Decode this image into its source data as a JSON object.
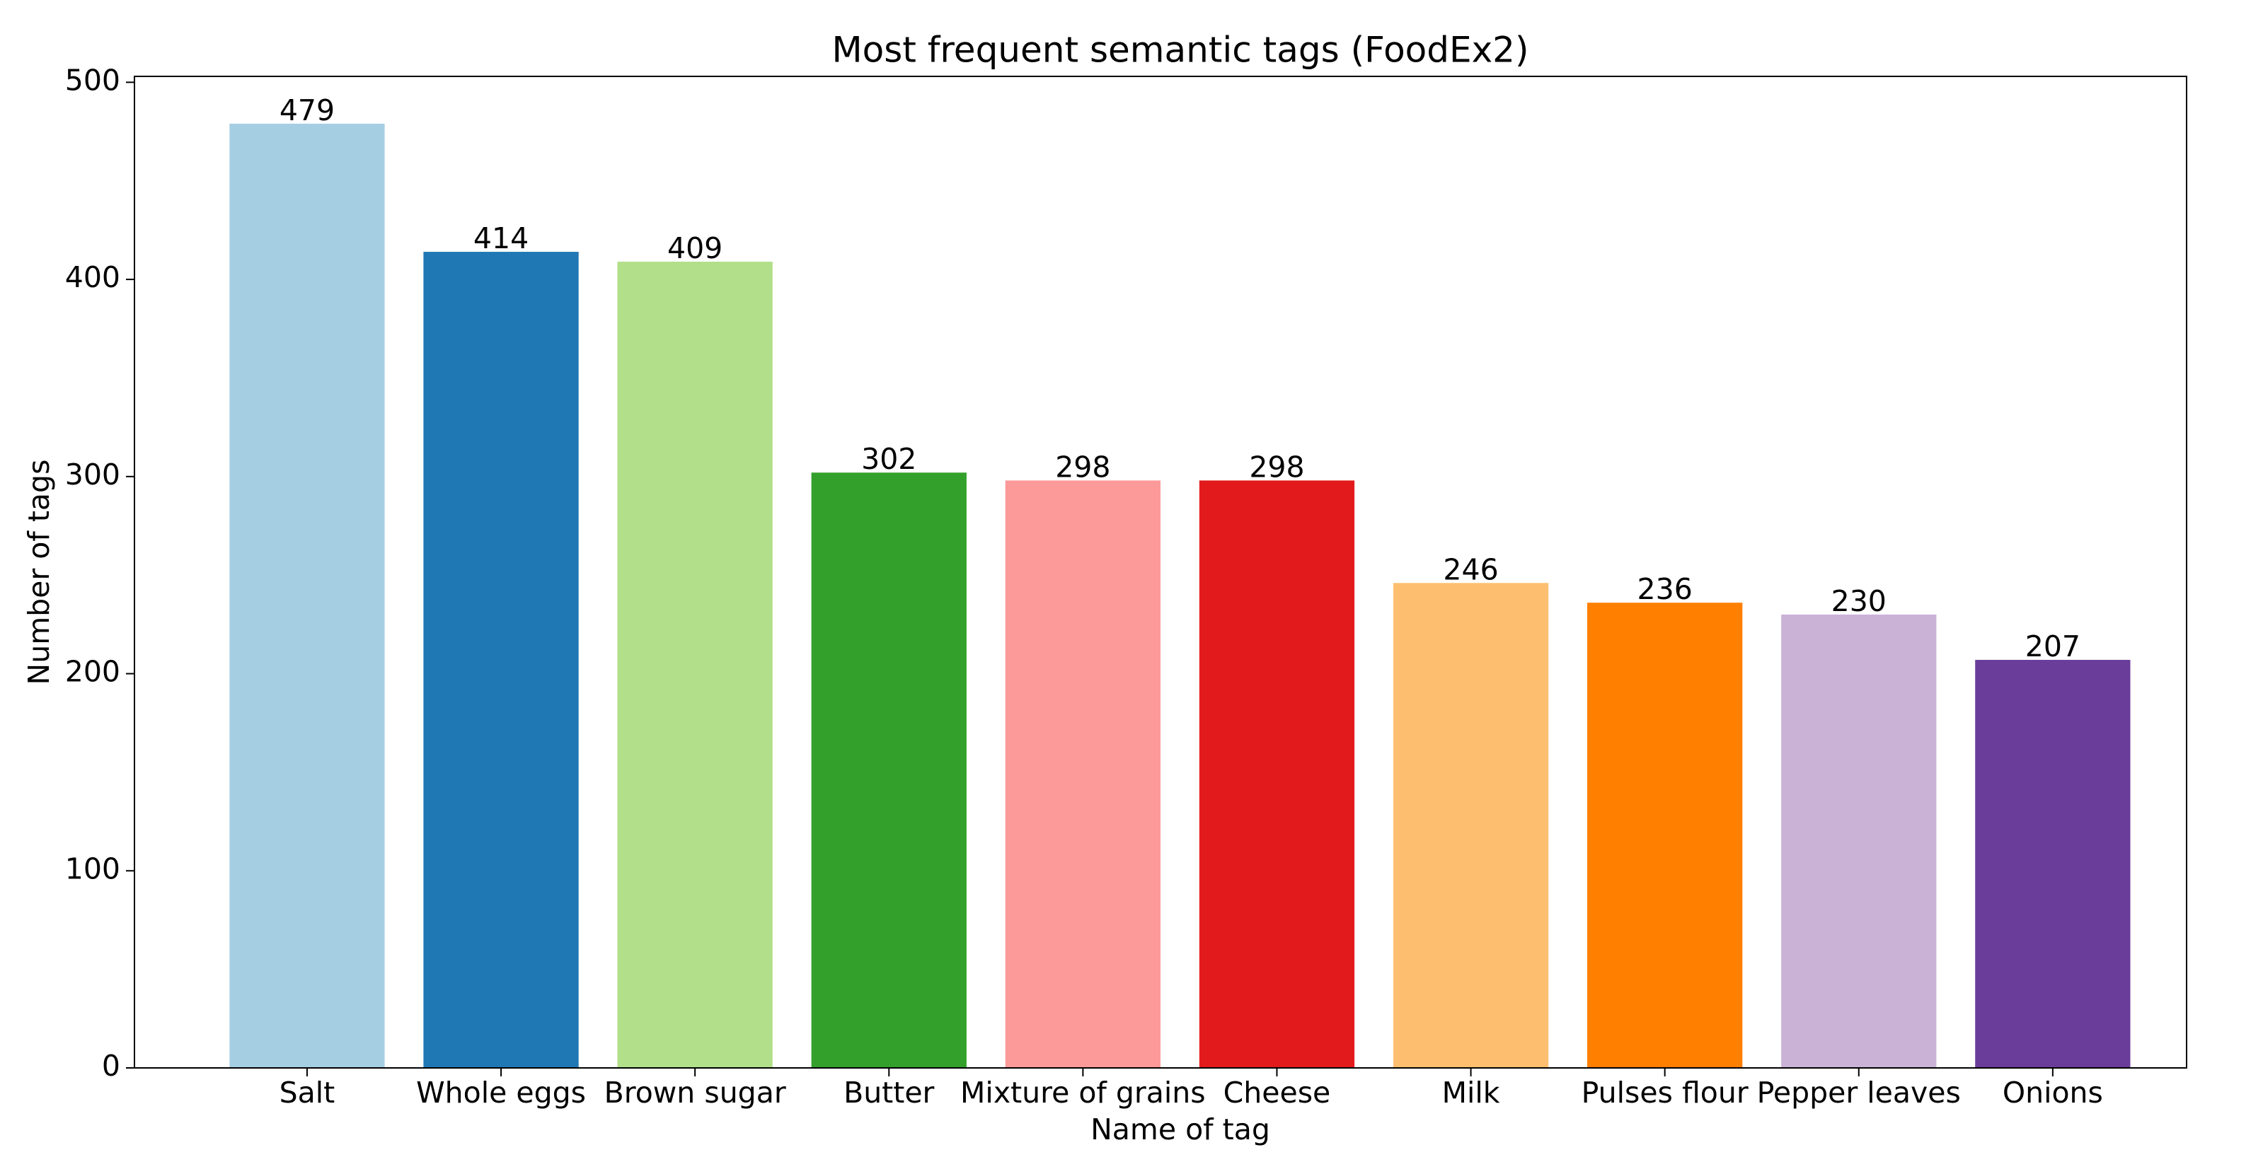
{
  "chart_data": {
    "type": "bar",
    "title": "Most frequent semantic tags (FoodEx2)",
    "x_label": "Name of tag",
    "y_label": "Number of tags",
    "categories": [
      "Salt",
      "Whole eggs",
      "Brown sugar",
      "Butter",
      "Mixture of grains",
      "Cheese",
      "Milk",
      "Pulses flour",
      "Pepper leaves",
      "Onions"
    ],
    "values": [
      479,
      414,
      409,
      302,
      298,
      298,
      246,
      236,
      230,
      207
    ],
    "colors": [
      "#a6cee3",
      "#1f78b4",
      "#b2df8a",
      "#33a02c",
      "#fb9a99",
      "#e31a1c",
      "#fdbf6f",
      "#ff7f00",
      "#cab2d6",
      "#6a3d9a"
    ],
    "ylim": [
      0,
      503
    ],
    "yticks": [
      0,
      100,
      200,
      300,
      400,
      500
    ],
    "grid": false
  }
}
